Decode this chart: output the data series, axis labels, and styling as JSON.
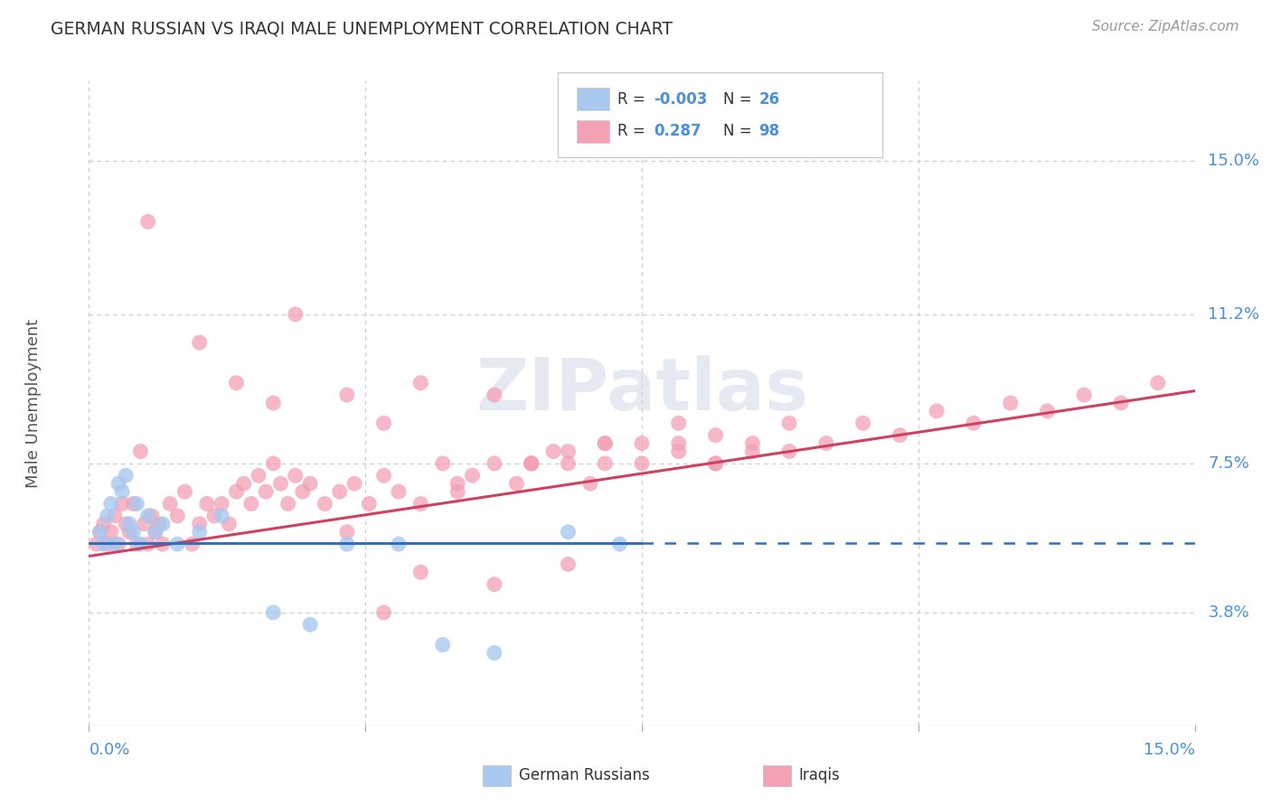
{
  "title": "GERMAN RUSSIAN VS IRAQI MALE UNEMPLOYMENT CORRELATION CHART",
  "source": "Source: ZipAtlas.com",
  "ylabel": "Male Unemployment",
  "y_tick_labels": [
    "3.8%",
    "7.5%",
    "11.2%",
    "15.0%"
  ],
  "y_tick_values": [
    3.8,
    7.5,
    11.2,
    15.0
  ],
  "xlim": [
    0.0,
    15.0
  ],
  "ylim": [
    1.0,
    17.0
  ],
  "watermark_text": "ZIPatlas",
  "legend_blue_label": "German Russians",
  "legend_pink_label": "Iraqis",
  "blue_scatter_color": "#a8c8f0",
  "pink_scatter_color": "#f4a0b5",
  "blue_line_color": "#3070c0",
  "pink_line_color": "#d04060",
  "background_color": "#ffffff",
  "grid_color": "#c8c8c8",
  "title_color": "#333333",
  "axis_label_color": "#4a90d9",
  "text_color_black": "#333333",
  "blue_x": [
    0.15,
    0.2,
    0.25,
    0.3,
    0.35,
    0.4,
    0.45,
    0.5,
    0.55,
    0.6,
    0.65,
    0.7,
    0.8,
    0.9,
    1.0,
    1.2,
    1.5,
    1.8,
    2.5,
    3.0,
    3.5,
    4.2,
    4.8,
    5.5,
    6.5,
    7.2
  ],
  "blue_y": [
    5.8,
    5.5,
    6.2,
    6.5,
    5.5,
    7.0,
    6.8,
    7.2,
    6.0,
    5.8,
    6.5,
    5.5,
    6.2,
    5.8,
    6.0,
    5.5,
    5.8,
    6.2,
    3.8,
    3.5,
    5.5,
    5.5,
    3.0,
    2.8,
    5.8,
    5.5
  ],
  "pink_x": [
    0.1,
    0.15,
    0.2,
    0.25,
    0.3,
    0.35,
    0.4,
    0.45,
    0.5,
    0.55,
    0.6,
    0.65,
    0.7,
    0.75,
    0.8,
    0.85,
    0.9,
    0.95,
    1.0,
    1.1,
    1.2,
    1.3,
    1.4,
    1.5,
    1.6,
    1.7,
    1.8,
    1.9,
    2.0,
    2.1,
    2.2,
    2.3,
    2.4,
    2.5,
    2.6,
    2.7,
    2.8,
    2.9,
    3.0,
    3.2,
    3.4,
    3.6,
    3.8,
    4.0,
    4.2,
    4.5,
    4.8,
    5.0,
    5.2,
    5.5,
    5.8,
    6.0,
    6.3,
    6.5,
    6.8,
    7.0,
    7.5,
    8.0,
    8.5,
    9.0,
    9.5,
    0.8,
    1.5,
    2.0,
    2.5,
    2.8,
    3.5,
    4.0,
    4.5,
    5.5,
    6.0,
    6.5,
    7.0,
    7.5,
    8.0,
    8.5,
    9.0,
    9.5,
    10.0,
    10.5,
    11.0,
    11.5,
    12.0,
    12.5,
    13.0,
    13.5,
    14.0,
    14.5,
    5.0,
    6.0,
    7.0,
    8.0,
    8.5,
    4.5,
    5.5,
    6.5,
    3.5,
    4.0
  ],
  "pink_y": [
    5.5,
    5.8,
    6.0,
    5.5,
    5.8,
    6.2,
    5.5,
    6.5,
    6.0,
    5.8,
    6.5,
    5.5,
    7.8,
    6.0,
    5.5,
    6.2,
    5.8,
    6.0,
    5.5,
    6.5,
    6.2,
    6.8,
    5.5,
    6.0,
    6.5,
    6.2,
    6.5,
    6.0,
    6.8,
    7.0,
    6.5,
    7.2,
    6.8,
    7.5,
    7.0,
    6.5,
    7.2,
    6.8,
    7.0,
    6.5,
    6.8,
    7.0,
    6.5,
    7.2,
    6.8,
    6.5,
    7.5,
    7.0,
    7.2,
    7.5,
    7.0,
    7.5,
    7.8,
    7.5,
    7.0,
    8.0,
    7.5,
    8.0,
    7.5,
    8.0,
    7.8,
    13.5,
    10.5,
    9.5,
    9.0,
    11.2,
    9.2,
    8.5,
    9.5,
    9.2,
    7.5,
    7.8,
    7.5,
    8.0,
    7.8,
    8.2,
    7.8,
    8.5,
    8.0,
    8.5,
    8.2,
    8.8,
    8.5,
    9.0,
    8.8,
    9.2,
    9.0,
    9.5,
    6.8,
    7.5,
    8.0,
    8.5,
    7.5,
    4.8,
    4.5,
    5.0,
    5.8,
    3.8
  ],
  "blue_line_x": [
    0.0,
    7.5
  ],
  "blue_line_y": [
    5.55,
    5.5
  ],
  "pink_line_x": [
    0.0,
    15.0
  ],
  "pink_line_y": [
    5.2,
    9.3
  ]
}
